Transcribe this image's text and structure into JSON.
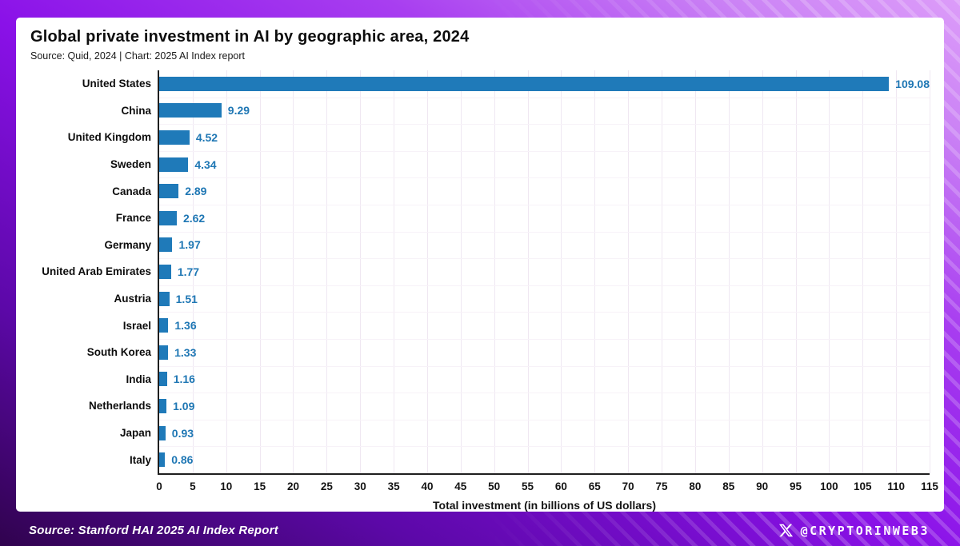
{
  "frame": {
    "footer_source": "Source: Stanford HAI 2025 AI Index Report",
    "handle": "@CRYPTORINWEB3",
    "colors": {
      "frame_dark": "#30034e",
      "frame_bright": "#8a11e8",
      "frame_light": "#dc9cf9"
    }
  },
  "chart_data": {
    "type": "bar",
    "orientation": "horizontal",
    "title": "Global private investment in AI by geographic area, 2024",
    "subtitle": "Source: Quid, 2024 | Chart: 2025 AI Index report",
    "categories": [
      "United States",
      "China",
      "United Kingdom",
      "Sweden",
      "Canada",
      "France",
      "Germany",
      "United Arab Emirates",
      "Austria",
      "Israel",
      "South Korea",
      "India",
      "Netherlands",
      "Japan",
      "Italy"
    ],
    "values": [
      109.08,
      9.29,
      4.52,
      4.34,
      2.89,
      2.62,
      1.97,
      1.77,
      1.51,
      1.36,
      1.33,
      1.16,
      1.09,
      0.93,
      0.86
    ],
    "value_labels": [
      "109.08",
      "9.29",
      "4.52",
      "4.34",
      "2.89",
      "2.62",
      "1.97",
      "1.77",
      "1.51",
      "1.36",
      "1.33",
      "1.16",
      "1.09",
      "0.93",
      "0.86"
    ],
    "xlabel": "Total investment (in billions of US dollars)",
    "xlim": [
      0,
      115
    ],
    "xtick_step": 5,
    "grid": true,
    "legend": "none",
    "bar_color": "#1f7ab9",
    "value_label_color": "#1f77b4"
  }
}
